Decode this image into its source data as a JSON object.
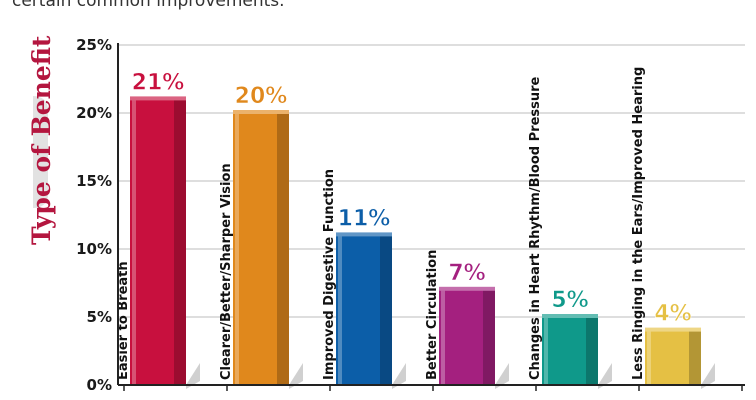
{
  "intro_text": "certain common improvements.",
  "chart_data": {
    "type": "bar",
    "ylabel": "Type of Benefit",
    "ylim": [
      0,
      25
    ],
    "yticks": [
      "0%",
      "5%",
      "10%",
      "15%",
      "20%",
      "25%"
    ],
    "ytick_values": [
      0,
      5,
      10,
      15,
      20,
      25
    ],
    "grid": true,
    "categories": [
      "Easier to Breath",
      "Clearer/Better/Sharper Vision",
      "Improved Digestive Function",
      "Better Circulation",
      "Changes in Heart Rhythm/Blood Pressure",
      "Less Ringing in the Ears/Improved Hearing"
    ],
    "values": [
      21,
      20,
      11,
      7,
      5,
      4
    ],
    "data_labels": [
      "21%",
      "20%",
      "11%",
      "7%",
      "5%",
      "4%"
    ],
    "colors": [
      "#c8103e",
      "#e0881c",
      "#0c5ea8",
      "#a4207f",
      "#0f998a",
      "#e5c044"
    ],
    "label_colors": [
      "#c8103e",
      "#e0881c",
      "#0c5ea8",
      "#a4207f",
      "#0f998a",
      "#e5c044"
    ]
  }
}
